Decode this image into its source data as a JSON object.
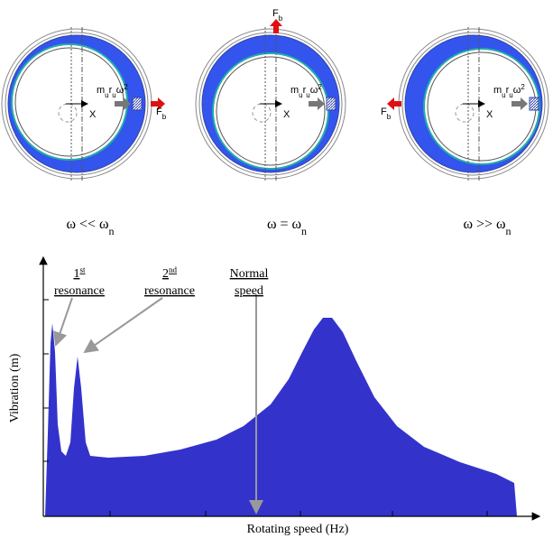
{
  "panels": [
    {
      "unbalance": [
        "m",
        "u",
        "r",
        "u",
        "ω",
        "2"
      ],
      "displacement": "X",
      "force": [
        "F",
        "b"
      ],
      "caption": [
        "ω << ω",
        "n"
      ]
    },
    {
      "unbalance": [
        "m",
        "u",
        "r",
        "u",
        "ω",
        "2"
      ],
      "displacement": "X",
      "force": [
        "F",
        "b"
      ],
      "caption": [
        "ω = ω",
        "n"
      ]
    },
    {
      "unbalance": [
        "m",
        "u",
        "r",
        "u",
        "ω",
        "2"
      ],
      "displacement": "X",
      "force": [
        "F",
        "b"
      ],
      "caption": [
        "ω >> ω",
        "n"
      ]
    }
  ],
  "chart": {
    "annotations": [
      [
        "1",
        "st",
        "resonance"
      ],
      [
        "2",
        "nd",
        "resonance"
      ],
      [
        "Normal",
        "",
        "speed"
      ]
    ],
    "y_label": "Vibration (m)",
    "x_label": "Rotating speed (Hz)"
  }
}
